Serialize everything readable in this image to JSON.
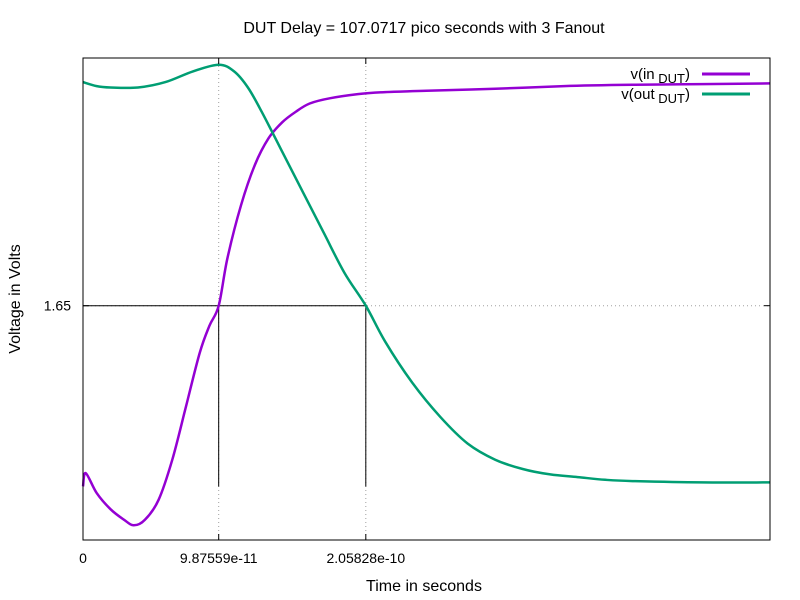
{
  "chart_data": {
    "type": "line",
    "title": "DUT Delay = 107.0717 pico seconds with 3 Fanout",
    "xlabel": "Time in seconds",
    "ylabel": "Voltage in Volts",
    "xlim": [
      0,
      5e-10
    ],
    "ylim": [
      -0.1,
      3.5
    ],
    "grid": true,
    "legend_position": "top-right",
    "x_ticks": [
      {
        "value": 0,
        "label": "0"
      },
      {
        "value": 9.87559e-11,
        "label": "9.87559e-11"
      },
      {
        "value": 2.05828e-10,
        "label": "2.05828e-10"
      }
    ],
    "y_ticks": [
      {
        "value": 1.65,
        "label": "1.65"
      }
    ],
    "markers": {
      "threshold_voltage": 1.65,
      "input_cross_time": 9.87559e-11,
      "output_cross_time": 2.05828e-10,
      "drop_to": 0.3
    },
    "series": [
      {
        "name_main": "v(in",
        "name_sub": "DUT",
        "name_close": ")",
        "color": "#9400d3",
        "x": [
          0,
          2e-12,
          1e-11,
          2e-11,
          3e-11,
          3.7e-11,
          4.5e-11,
          5.5e-11,
          6.5e-11,
          7.5e-11,
          8.5e-11,
          9.2e-11,
          9.87559e-11,
          1.05e-10,
          1.15e-10,
          1.25e-10,
          1.35e-10,
          1.45e-10,
          1.55e-10,
          1.65e-10,
          1.8e-10,
          2e-10,
          2.2e-10,
          2.5e-10,
          3e-10,
          3.5e-10,
          4e-10,
          4.5e-10,
          5e-10
        ],
        "y": [
          0.3,
          0.4,
          0.25,
          0.13,
          0.05,
          0.01,
          0.05,
          0.2,
          0.5,
          0.9,
          1.3,
          1.5,
          1.65,
          2.0,
          2.4,
          2.7,
          2.9,
          3.02,
          3.1,
          3.16,
          3.2,
          3.23,
          3.245,
          3.255,
          3.27,
          3.29,
          3.3,
          3.305,
          3.31
        ]
      },
      {
        "name_main": "v(out",
        "name_sub": "DUT",
        "name_close": ")",
        "color": "#009e73",
        "x": [
          0,
          1e-11,
          2e-11,
          4e-11,
          6e-11,
          8e-11,
          9.87559e-11,
          1.1e-10,
          1.2e-10,
          1.3e-10,
          1.45e-10,
          1.6e-10,
          1.75e-10,
          1.9e-10,
          2.05828e-10,
          2.2e-10,
          2.4e-10,
          2.6e-10,
          2.8e-10,
          3e-10,
          3.2e-10,
          3.4e-10,
          3.6e-10,
          3.8e-10,
          4e-10,
          4.5e-10,
          5e-10
        ],
        "y": [
          3.32,
          3.29,
          3.28,
          3.28,
          3.32,
          3.4,
          3.45,
          3.4,
          3.28,
          3.1,
          2.8,
          2.5,
          2.2,
          1.9,
          1.65,
          1.38,
          1.07,
          0.82,
          0.62,
          0.5,
          0.43,
          0.39,
          0.37,
          0.35,
          0.34,
          0.33,
          0.33
        ]
      }
    ]
  }
}
